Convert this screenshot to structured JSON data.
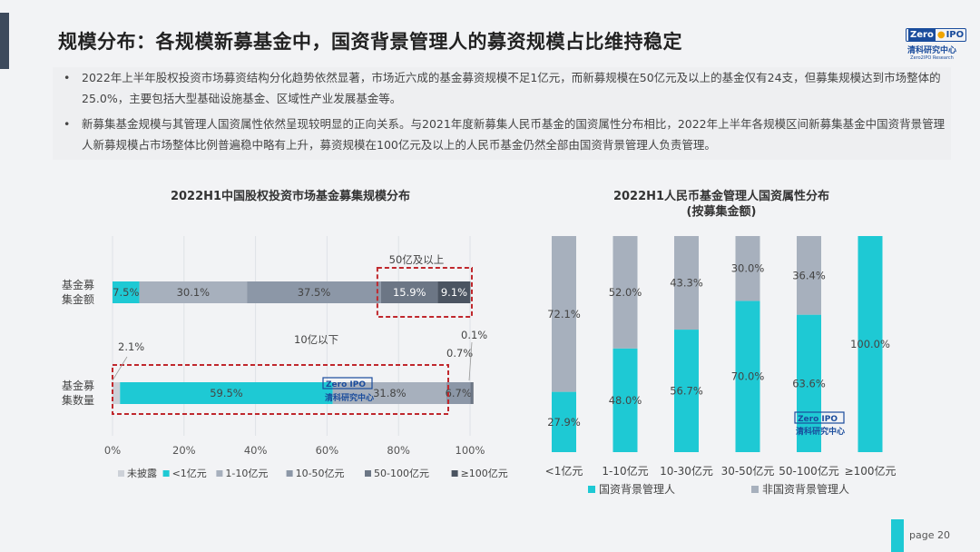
{
  "header": {
    "title": "规模分布：各规模新募基金中，国资背景管理人的募资规模占比维持稳定",
    "logo_mark_left": "Zero",
    "logo_mark_right": "IPO",
    "logo_cn": "清科研究中心",
    "logo_en": "Zero2IPO Research"
  },
  "bullets": [
    "2022年上半年股权投资市场募资结构分化趋势依然显著，市场近六成的基金募资规模不足1亿元，而新募规模在50亿元及以上的基金仅有24支，但募集规模达到市场整体的25.0%，主要包括大型基础设施基金、区域性产业发展基金等。",
    "新募集基金规模与其管理人国资属性依然呈现较明显的正向关系。与2021年度新募集人民币基金的国资属性分布相比，2022年上半年各规模区间新募集基金中国资背景管理人新募规模占市场整体比例普遍稳中略有上升，募资规模在100亿元及以上的人民币基金仍然全部由国资背景管理人负责管理。"
  ],
  "colors": {
    "undisclosed": "#cdd1d8",
    "lt1": "#1ec9d4",
    "b1_10": "#a7b0bd",
    "b10_50": "#8c97a7",
    "b50_100": "#6c7685",
    "ge100": "#4b5461",
    "state": "#1ec9d4",
    "nonstate": "#a7b0bd",
    "highlight": "#c0282d"
  },
  "chart_data": [
    {
      "type": "bar",
      "orientation": "horizontal-stacked",
      "title": "2022H1中国股权投资市场基金募集规模分布",
      "categories": [
        "基金募集金额",
        "基金募集数量"
      ],
      "category_labels": [
        "基金募\n集金额",
        "基金募\n集数量"
      ],
      "series": [
        {
          "name": "未披露",
          "values": [
            0.0,
            2.1
          ],
          "labels": [
            "",
            ""
          ]
        },
        {
          "name": "<1亿元",
          "values": [
            7.5,
            59.5
          ],
          "labels": [
            "7.5%",
            "59.5%"
          ]
        },
        {
          "name": "1-10亿元",
          "values": [
            30.1,
            31.8
          ],
          "labels": [
            "30.1%",
            "31.8%"
          ]
        },
        {
          "name": "10-50亿元",
          "values": [
            37.5,
            6.7
          ],
          "labels": [
            "37.5%",
            "6.7%"
          ]
        },
        {
          "name": "50-100亿元",
          "values": [
            15.9,
            0.7
          ],
          "labels": [
            "15.9%",
            ""
          ]
        },
        {
          "name": "≥100亿元",
          "values": [
            9.1,
            0.1
          ],
          "labels": [
            "9.1%",
            ""
          ]
        }
      ],
      "xticks": [
        "0%",
        "20%",
        "40%",
        "60%",
        "80%",
        "100%"
      ],
      "xlim": [
        0,
        100
      ],
      "annotations": {
        "top": "50亿及以上",
        "bottom": "10亿以下",
        "a21": "2.1%",
        "a07": "0.7%",
        "a01": "0.1%"
      },
      "legend_position": "bottom"
    },
    {
      "type": "bar",
      "orientation": "vertical-stacked",
      "title": "2022H1人民币基金管理人国资属性分布",
      "subtitle": "(按募集金额)",
      "categories": [
        "<1亿元",
        "1-10亿元",
        "10-30亿元",
        "30-50亿元",
        "50-100亿元",
        "≥100亿元"
      ],
      "series": [
        {
          "name": "国资背景管理人",
          "values": [
            27.9,
            48.0,
            56.7,
            70.0,
            63.6,
            100.0
          ],
          "labels": [
            "27.9%",
            "48.0%",
            "56.7%",
            "70.0%",
            "63.6%",
            "100.0%"
          ]
        },
        {
          "name": "非国资背景管理人",
          "values": [
            72.1,
            52.0,
            43.3,
            30.0,
            36.4,
            0.0
          ],
          "labels": [
            "72.1%",
            "52.0%",
            "43.3%",
            "30.0%",
            "36.4%",
            ""
          ]
        }
      ],
      "ylim": [
        0,
        100
      ],
      "legend_position": "bottom"
    }
  ],
  "footer": {
    "page": "page  20"
  }
}
